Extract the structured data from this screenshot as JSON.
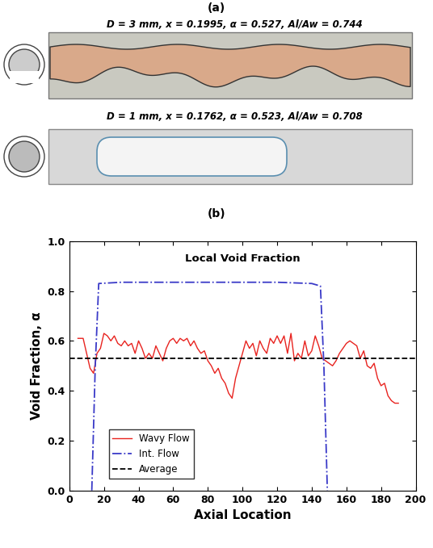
{
  "panels": [
    "(a)",
    "(b)"
  ],
  "images": [
    {
      "caption": "D = 3 mm, x = 0.1995, α = 0.527, Al/Aw = 0.744"
    },
    {
      "caption": "D = 1 mm, x = 0.1762, α = 0.523, Al/Aw = 0.708"
    }
  ],
  "chart_data": {
    "type": "line",
    "title": "Local Void Fraction",
    "x_label": "Axial Location",
    "y_label": "Void Fraction, α",
    "xlim": [
      0,
      200
    ],
    "xticks": [
      0,
      20,
      40,
      60,
      80,
      100,
      120,
      140,
      160,
      180,
      200
    ],
    "ylim": [
      0,
      1
    ],
    "yticks": [
      {
        "value": 0,
        "label": "0.0"
      },
      {
        "value": 0.2,
        "label": "0.2"
      },
      {
        "value": 0.4,
        "label": "0.4"
      },
      {
        "value": 0.6,
        "label": "0.6"
      },
      {
        "value": 0.8,
        "label": "0.8"
      },
      {
        "value": 1,
        "label": "1.0"
      }
    ],
    "legend": "lower left",
    "series": [
      {
        "name": "Wavy Flow",
        "color": "#e8231f",
        "line_style": "solid",
        "x": [
          5,
          8,
          10,
          12,
          14,
          16,
          18,
          20,
          22,
          24,
          26,
          28,
          30,
          32,
          34,
          36,
          38,
          40,
          42,
          44,
          46,
          48,
          50,
          52,
          54,
          56,
          58,
          60,
          62,
          64,
          66,
          68,
          70,
          72,
          74,
          76,
          78,
          80,
          82,
          84,
          86,
          88,
          90,
          92,
          94,
          96,
          98,
          100,
          102,
          104,
          106,
          108,
          110,
          112,
          114,
          116,
          118,
          120,
          122,
          124,
          126,
          128,
          130,
          132,
          134,
          136,
          138,
          140,
          142,
          144,
          146,
          148,
          150,
          152,
          154,
          156,
          158,
          160,
          162,
          164,
          166,
          168,
          170,
          172,
          174,
          176,
          178,
          180,
          182,
          184,
          186,
          188,
          190
        ],
        "values": [
          0.61,
          0.61,
          0.55,
          0.49,
          0.47,
          0.55,
          0.57,
          0.63,
          0.62,
          0.6,
          0.62,
          0.59,
          0.58,
          0.6,
          0.58,
          0.59,
          0.55,
          0.6,
          0.57,
          0.53,
          0.55,
          0.53,
          0.58,
          0.55,
          0.52,
          0.57,
          0.6,
          0.61,
          0.59,
          0.61,
          0.6,
          0.61,
          0.58,
          0.6,
          0.57,
          0.55,
          0.56,
          0.52,
          0.5,
          0.47,
          0.49,
          0.45,
          0.43,
          0.39,
          0.37,
          0.45,
          0.5,
          0.55,
          0.6,
          0.57,
          0.59,
          0.54,
          0.6,
          0.57,
          0.55,
          0.61,
          0.59,
          0.62,
          0.59,
          0.62,
          0.55,
          0.63,
          0.52,
          0.55,
          0.53,
          0.6,
          0.54,
          0.56,
          0.62,
          0.58,
          0.53,
          0.52,
          0.51,
          0.5,
          0.52,
          0.55,
          0.57,
          0.59,
          0.6,
          0.59,
          0.58,
          0.53,
          0.56,
          0.5,
          0.49,
          0.51,
          0.45,
          0.42,
          0.43,
          0.38,
          0.36,
          0.35,
          0.35
        ]
      },
      {
        "name": "Int. Flow",
        "color": "#3a3ac8",
        "line_style": "dashdot",
        "x": [
          13,
          15,
          17,
          30,
          60,
          90,
          120,
          140,
          145,
          147,
          149
        ],
        "values": [
          0,
          0.5,
          0.83,
          0.835,
          0.835,
          0.835,
          0.835,
          0.83,
          0.82,
          0.5,
          0
        ]
      },
      {
        "name": "Average",
        "color": "#000000",
        "line_style": "dashed",
        "x": [
          0,
          200
        ],
        "values": [
          0.53,
          0.53
        ]
      }
    ]
  }
}
